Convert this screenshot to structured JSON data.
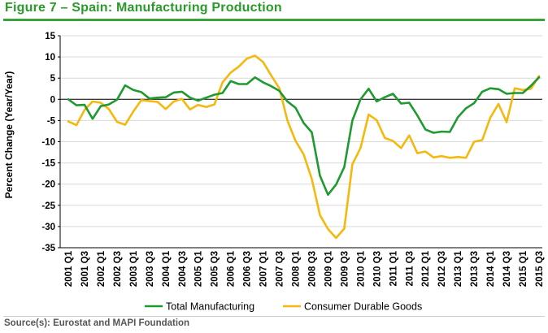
{
  "title": "Figure 7 – Spain: Manufacturing Production",
  "source": "Source(s): Eurostat and MAPI Foundation",
  "colors": {
    "title": "#2a9a2a",
    "green": "#1f9a30",
    "yellow": "#f5b80f",
    "grid": "#d9d9d9",
    "axis": "#000000"
  },
  "chart_data": {
    "type": "line",
    "ylabel": "Percent Change (Year/Year)",
    "xlabel": "",
    "ylim": [
      -35,
      15
    ],
    "yticks": [
      15,
      10,
      5,
      0,
      -5,
      -10,
      -15,
      -20,
      -25,
      -30,
      -35
    ],
    "grid": true,
    "legend": "bottom",
    "x_tick_labels": [
      "2001 Q1",
      "2001 Q3",
      "2002 Q1",
      "2002 Q3",
      "2003 Q1",
      "2003 Q3",
      "2004 Q1",
      "2004 Q3",
      "2005 Q1",
      "2005 Q3",
      "2006 Q1",
      "2006 Q3",
      "2007 Q1",
      "2007 Q3",
      "2008 Q1",
      "2008 Q3",
      "2009 Q1",
      "2009 Q3",
      "2010 Q1",
      "2010 Q3",
      "2011 Q1",
      "2011 Q3",
      "2012 Q1",
      "2012 Q3",
      "2013 Q1",
      "2013 Q3",
      "2014 Q1",
      "2014 Q3",
      "2015 Q1",
      "2015 Q3"
    ],
    "x": [
      "2001 Q1",
      "2001 Q2",
      "2001 Q3",
      "2001 Q4",
      "2002 Q1",
      "2002 Q2",
      "2002 Q3",
      "2002 Q4",
      "2003 Q1",
      "2003 Q2",
      "2003 Q3",
      "2003 Q4",
      "2004 Q1",
      "2004 Q2",
      "2004 Q3",
      "2004 Q4",
      "2005 Q1",
      "2005 Q2",
      "2005 Q3",
      "2005 Q4",
      "2006 Q1",
      "2006 Q2",
      "2006 Q3",
      "2006 Q4",
      "2007 Q1",
      "2007 Q2",
      "2007 Q3",
      "2007 Q4",
      "2008 Q1",
      "2008 Q2",
      "2008 Q3",
      "2008 Q4",
      "2009 Q1",
      "2009 Q2",
      "2009 Q3",
      "2009 Q4",
      "2010 Q1",
      "2010 Q2",
      "2010 Q3",
      "2010 Q4",
      "2011 Q1",
      "2011 Q2",
      "2011 Q3",
      "2011 Q4",
      "2012 Q1",
      "2012 Q2",
      "2012 Q3",
      "2012 Q4",
      "2013 Q1",
      "2013 Q2",
      "2013 Q3",
      "2013 Q4",
      "2014 Q1",
      "2014 Q2",
      "2014 Q3",
      "2014 Q4",
      "2015 Q1",
      "2015 Q2",
      "2015 Q3"
    ],
    "series": [
      {
        "name": "Total Manufacturing",
        "color": "#1f9a30",
        "values": [
          0,
          -1.4,
          -1.3,
          -4.6,
          -1.6,
          -1.2,
          -0.1,
          3.3,
          2.2,
          1.7,
          0.2,
          0.4,
          0.5,
          1.6,
          1.8,
          0.4,
          -0.3,
          0.4,
          1.1,
          1.5,
          4.3,
          3.6,
          3.6,
          5.2,
          4.0,
          3.1,
          2.0,
          -0.5,
          -2.0,
          -5.6,
          -7.8,
          -18.0,
          -22.5,
          -20.1,
          -16.0,
          -5.0,
          0.0,
          2.5,
          -0.5,
          0.5,
          1.3,
          -1.0,
          -0.8,
          -3.8,
          -7.1,
          -7.9,
          -7.6,
          -7.7,
          -4.2,
          -2.1,
          -0.9,
          1.8,
          2.6,
          2.4,
          1.3,
          1.5,
          1.5,
          3.2,
          5.2
        ]
      },
      {
        "name": "Consumer Durable Goods",
        "color": "#f5b80f",
        "values": [
          -5.2,
          -6.1,
          -2.5,
          -0.5,
          -0.8,
          -2.3,
          -5.3,
          -6.0,
          -2.9,
          -0.2,
          -0.4,
          -0.6,
          -2.3,
          -0.5,
          0.1,
          -2.4,
          -1.3,
          -1.8,
          -1.2,
          4.0,
          6.3,
          7.7,
          9.6,
          10.3,
          8.8,
          5.6,
          2.6,
          -5.0,
          -9.8,
          -13.0,
          -18.8,
          -27.3,
          -30.6,
          -32.7,
          -30.5,
          -15.3,
          -11.5,
          -3.6,
          -4.9,
          -9.1,
          -9.8,
          -11.5,
          -8.5,
          -12.7,
          -12.3,
          -13.7,
          -13.4,
          -13.8,
          -13.6,
          -13.8,
          -10.0,
          -9.6,
          -4.3,
          -1.1,
          -5.4,
          2.6,
          2.2,
          2.5,
          5.5
        ]
      }
    ]
  }
}
